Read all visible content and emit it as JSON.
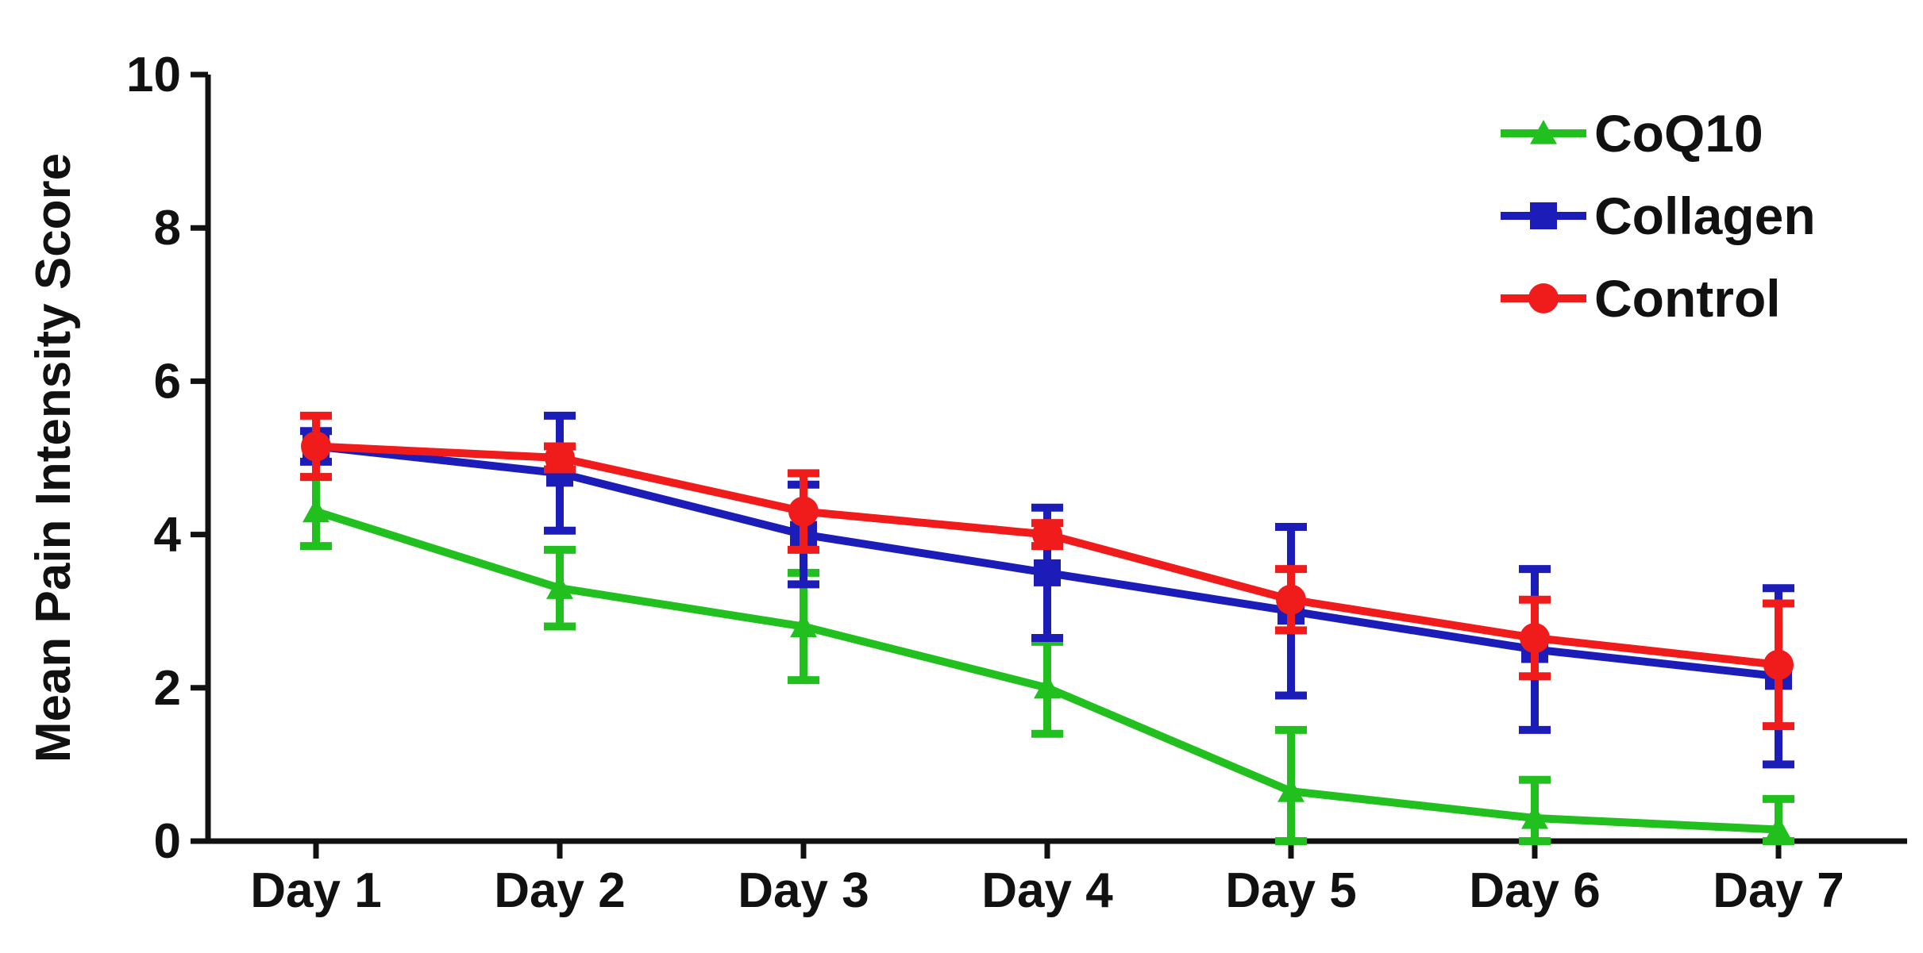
{
  "chart_data": {
    "type": "line",
    "ylabel": "Mean Pain Intensity Score",
    "xlabel": "",
    "categories": [
      "Day 1",
      "Day 2",
      "Day 3",
      "Day 4",
      "Day 5",
      "Day 6",
      "Day 7"
    ],
    "ylim": [
      0,
      10
    ],
    "yticks": [
      "0",
      "2",
      "4",
      "6",
      "8",
      "10"
    ],
    "grid": false,
    "legend_position": "top-right",
    "series": [
      {
        "name": "CoQ10",
        "color": "#22c01e",
        "marker": "triangle",
        "values": [
          4.3,
          3.3,
          2.8,
          2.0,
          0.65,
          0.3,
          0.15
        ],
        "error": [
          0.45,
          0.5,
          0.7,
          0.6,
          0.8,
          0.5,
          0.4
        ]
      },
      {
        "name": "Collagen",
        "color": "#1c1cb8",
        "marker": "square",
        "values": [
          5.15,
          4.8,
          4.0,
          3.5,
          3.0,
          2.5,
          2.15
        ],
        "error": [
          0.2,
          0.75,
          0.65,
          0.85,
          1.1,
          1.05,
          1.15
        ]
      },
      {
        "name": "Control",
        "color": "#f01c1c",
        "marker": "circle",
        "values": [
          5.15,
          5.0,
          4.3,
          4.0,
          3.15,
          2.65,
          2.3
        ],
        "error": [
          0.4,
          0.15,
          0.5,
          0.15,
          0.4,
          0.5,
          0.8
        ]
      }
    ]
  }
}
